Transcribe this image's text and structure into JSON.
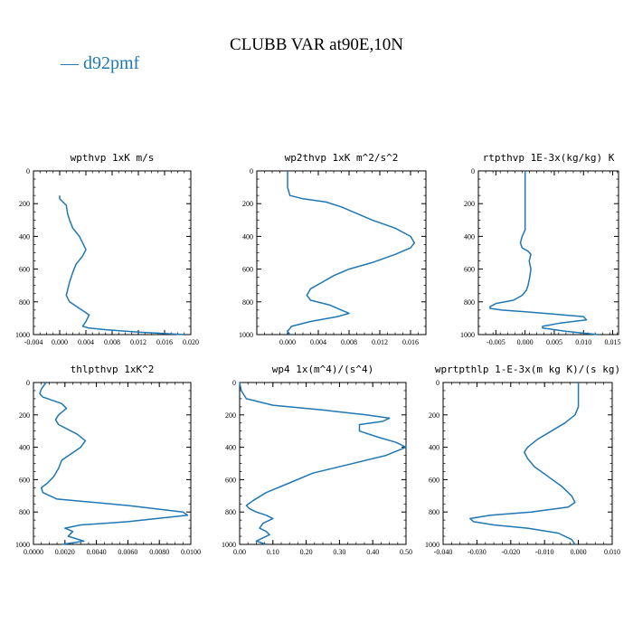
{
  "figure": {
    "title": "CLUBB VAR at90E,10N",
    "legend": {
      "label": "d92pmf",
      "color": "#1f77b4"
    }
  },
  "chart_data": [
    {
      "type": "line",
      "title": "wpthvp  1xK m/s",
      "xlim": [
        -0.004,
        0.02
      ],
      "ylim": [
        1000,
        0
      ],
      "xticks": [
        "-0.004",
        "0.000",
        "0.004",
        "0.008",
        "0.012",
        "0.016",
        "0.020"
      ],
      "yticks": [
        "0",
        "200",
        "400",
        "600",
        "800",
        "1000"
      ],
      "series": [
        {
          "name": "d92pmf",
          "color": "#1f77b4",
          "x": [
            0.0,
            0.0,
            0.0005,
            0.001,
            0.0012,
            0.0015,
            0.002,
            0.003,
            0.0035,
            0.004,
            0.0035,
            0.0025,
            0.002,
            0.0015,
            0.001,
            0.0015,
            0.003,
            0.0045,
            0.004,
            0.0035,
            0.0045,
            0.007,
            0.012,
            0.019
          ],
          "y": [
            150,
            170,
            190,
            210,
            260,
            300,
            350,
            400,
            440,
            480,
            520,
            570,
            620,
            680,
            760,
            800,
            840,
            880,
            920,
            950,
            960,
            970,
            985,
            1000
          ]
        }
      ]
    },
    {
      "type": "line",
      "title": "wp2thvp  1xK m^2/s^2",
      "xlim": [
        -0.004,
        0.018
      ],
      "ylim": [
        1000,
        0
      ],
      "xticks": [
        "0.000",
        "0.004",
        "0.008",
        "0.012",
        "0.016"
      ],
      "yticks": [
        "0",
        "200",
        "400",
        "600",
        "800",
        "1000"
      ],
      "series": [
        {
          "name": "d92pmf",
          "color": "#1f77b4",
          "x": [
            0.0,
            0.0,
            0.0003,
            0.002,
            0.005,
            0.007,
            0.009,
            0.011,
            0.014,
            0.016,
            0.0165,
            0.016,
            0.014,
            0.011,
            0.008,
            0.006,
            0.0045,
            0.003,
            0.0025,
            0.003,
            0.0055,
            0.008,
            0.0065,
            0.003,
            0.0005,
            0.0,
            0.0003
          ],
          "y": [
            0,
            100,
            150,
            170,
            190,
            220,
            260,
            300,
            350,
            400,
            440,
            470,
            510,
            560,
            600,
            640,
            680,
            720,
            760,
            790,
            820,
            870,
            890,
            920,
            950,
            980,
            1000
          ]
        }
      ]
    },
    {
      "type": "line",
      "title": "rtpthvp  1E-3x(kg/kg) K",
      "xlim": [
        -0.008,
        0.016
      ],
      "ylim": [
        1000,
        0
      ],
      "xticks": [
        "-0.005",
        "0.000",
        "0.005",
        "0.010",
        "0.015"
      ],
      "yticks": [
        "0",
        "200",
        "400",
        "600",
        "800",
        "1000"
      ],
      "series": [
        {
          "name": "d92pmf",
          "color": "#1f77b4",
          "x": [
            0.0,
            0.0,
            0.0,
            0.0,
            0.0,
            0.0,
            0.0,
            -0.0005,
            -0.0008,
            -0.0005,
            0.0005,
            0.001,
            0.0007,
            0.001,
            0.0008,
            0.0005,
            0.0002,
            -0.0005,
            -0.002,
            -0.005,
            -0.006,
            -0.006,
            -0.004,
            0.0,
            0.005,
            0.01,
            0.0105,
            0.006,
            0.003,
            0.003,
            0.007,
            0.0125
          ],
          "y": [
            0,
            100,
            200,
            250,
            300,
            330,
            360,
            400,
            440,
            470,
            490,
            510,
            550,
            600,
            650,
            700,
            730,
            760,
            790,
            810,
            830,
            840,
            850,
            860,
            875,
            890,
            910,
            930,
            950,
            960,
            980,
            1000
          ]
        }
      ]
    },
    {
      "type": "line",
      "title": "thlpthvp  1xK^2",
      "xlim": [
        0.0,
        0.01
      ],
      "ylim": [
        1000,
        0
      ],
      "xticks": [
        "0.0000",
        "0.0020",
        "0.0040",
        "0.0060",
        "0.0080",
        "0.0100"
      ],
      "yticks": [
        "0",
        "200",
        "400",
        "600",
        "800",
        "1000"
      ],
      "series": [
        {
          "name": "d92pmf",
          "color": "#1f77b4",
          "x": [
            0.0008,
            0.0005,
            0.0004,
            0.0006,
            0.0012,
            0.0018,
            0.0021,
            0.0016,
            0.0014,
            0.0016,
            0.0022,
            0.0028,
            0.0033,
            0.003,
            0.0024,
            0.0018,
            0.0016,
            0.0013,
            0.0009,
            0.0005,
            0.0006,
            0.0015,
            0.006,
            0.0095,
            0.0098,
            0.006,
            0.003,
            0.002,
            0.0025,
            0.0022,
            0.0032,
            0.0025,
            0.0018
          ],
          "y": [
            0,
            40,
            70,
            90,
            110,
            130,
            160,
            200,
            230,
            260,
            290,
            320,
            360,
            400,
            440,
            480,
            530,
            580,
            620,
            650,
            680,
            720,
            760,
            800,
            820,
            860,
            880,
            900,
            920,
            950,
            980,
            990,
            1000
          ]
        }
      ]
    },
    {
      "type": "line",
      "title": "wp4  1x(m^4)/(s^4)",
      "xlim": [
        0.0,
        0.5
      ],
      "ylim": [
        1000,
        0
      ],
      "xticks": [
        "0.00",
        "0.10",
        "0.20",
        "0.30",
        "0.40",
        "0.50"
      ],
      "yticks": [
        "0",
        "200",
        "400",
        "600",
        "800",
        "1000"
      ],
      "series": [
        {
          "name": "d92pmf",
          "color": "#1f77b4",
          "x": [
            0.0,
            0.005,
            0.02,
            0.1,
            0.25,
            0.38,
            0.45,
            0.43,
            0.36,
            0.36,
            0.42,
            0.47,
            0.5,
            0.44,
            0.32,
            0.22,
            0.15,
            0.08,
            0.04,
            0.02,
            0.03,
            0.05,
            0.08,
            0.1,
            0.07,
            0.06,
            0.08,
            0.09,
            0.07,
            0.05,
            0.08
          ],
          "y": [
            0,
            50,
            100,
            140,
            170,
            200,
            220,
            240,
            260,
            300,
            340,
            370,
            400,
            450,
            510,
            560,
            620,
            680,
            730,
            760,
            780,
            800,
            820,
            840,
            870,
            900,
            920,
            940,
            960,
            980,
            1000
          ]
        }
      ]
    },
    {
      "type": "line",
      "title": "wprtpthlp  1-E-3x(m kg K)/(s kg)",
      "xlim": [
        -0.04,
        0.01
      ],
      "ylim": [
        1000,
        0
      ],
      "xticks": [
        "-0.040",
        "-0.030",
        "-0.020",
        "-0.010",
        "0.000",
        "0.010"
      ],
      "yticks": [
        "0",
        "200",
        "400",
        "600",
        "800",
        "1000"
      ],
      "series": [
        {
          "name": "d92pmf",
          "color": "#1f77b4",
          "x": [
            0.0,
            0.0,
            0.0,
            -0.001,
            -0.004,
            -0.008,
            -0.012,
            -0.015,
            -0.016,
            -0.015,
            -0.013,
            -0.009,
            -0.005,
            -0.002,
            -0.001,
            -0.003,
            -0.014,
            -0.026,
            -0.032,
            -0.031,
            -0.025,
            -0.015,
            -0.006,
            -0.002,
            -0.001
          ],
          "y": [
            0,
            100,
            150,
            200,
            250,
            300,
            350,
            400,
            430,
            470,
            520,
            580,
            640,
            700,
            740,
            770,
            800,
            820,
            840,
            860,
            880,
            900,
            930,
            970,
            1000
          ]
        }
      ]
    }
  ]
}
